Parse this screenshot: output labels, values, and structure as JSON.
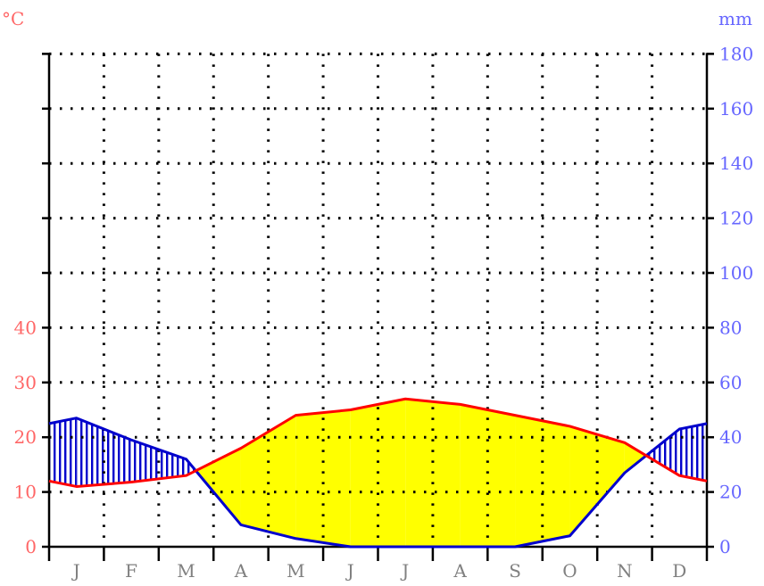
{
  "chart_data": {
    "type": "line",
    "title": "",
    "xlabel": "",
    "categories": [
      "J",
      "F",
      "M",
      "A",
      "M",
      "J",
      "J",
      "A",
      "S",
      "O",
      "N",
      "D"
    ],
    "left_axis": {
      "unit": "°C",
      "ylim": [
        0,
        50
      ],
      "ticks": [
        0,
        10,
        20,
        30,
        40
      ]
    },
    "right_axis": {
      "unit": "mm",
      "ylim": [
        0,
        180
      ],
      "ticks": [
        0,
        20,
        40,
        60,
        80,
        100,
        120,
        140,
        160,
        180
      ]
    },
    "grid": "dotted",
    "series": [
      {
        "axis": "left",
        "color": "#ff0000",
        "values": [
          11,
          11.8,
          13,
          18,
          24,
          25,
          27,
          26,
          24,
          22,
          19,
          13
        ]
      },
      {
        "axis": "right",
        "color": "#0000cc",
        "values": [
          47,
          39,
          32,
          8,
          3,
          0,
          0,
          0,
          0,
          4,
          27,
          43
        ]
      }
    ],
    "edge_values": {
      "temperature": [
        12,
        12
      ],
      "precipitation": [
        45,
        45
      ]
    },
    "fills": {
      "arid": "#ffff00",
      "humid": "#0000cc"
    }
  }
}
